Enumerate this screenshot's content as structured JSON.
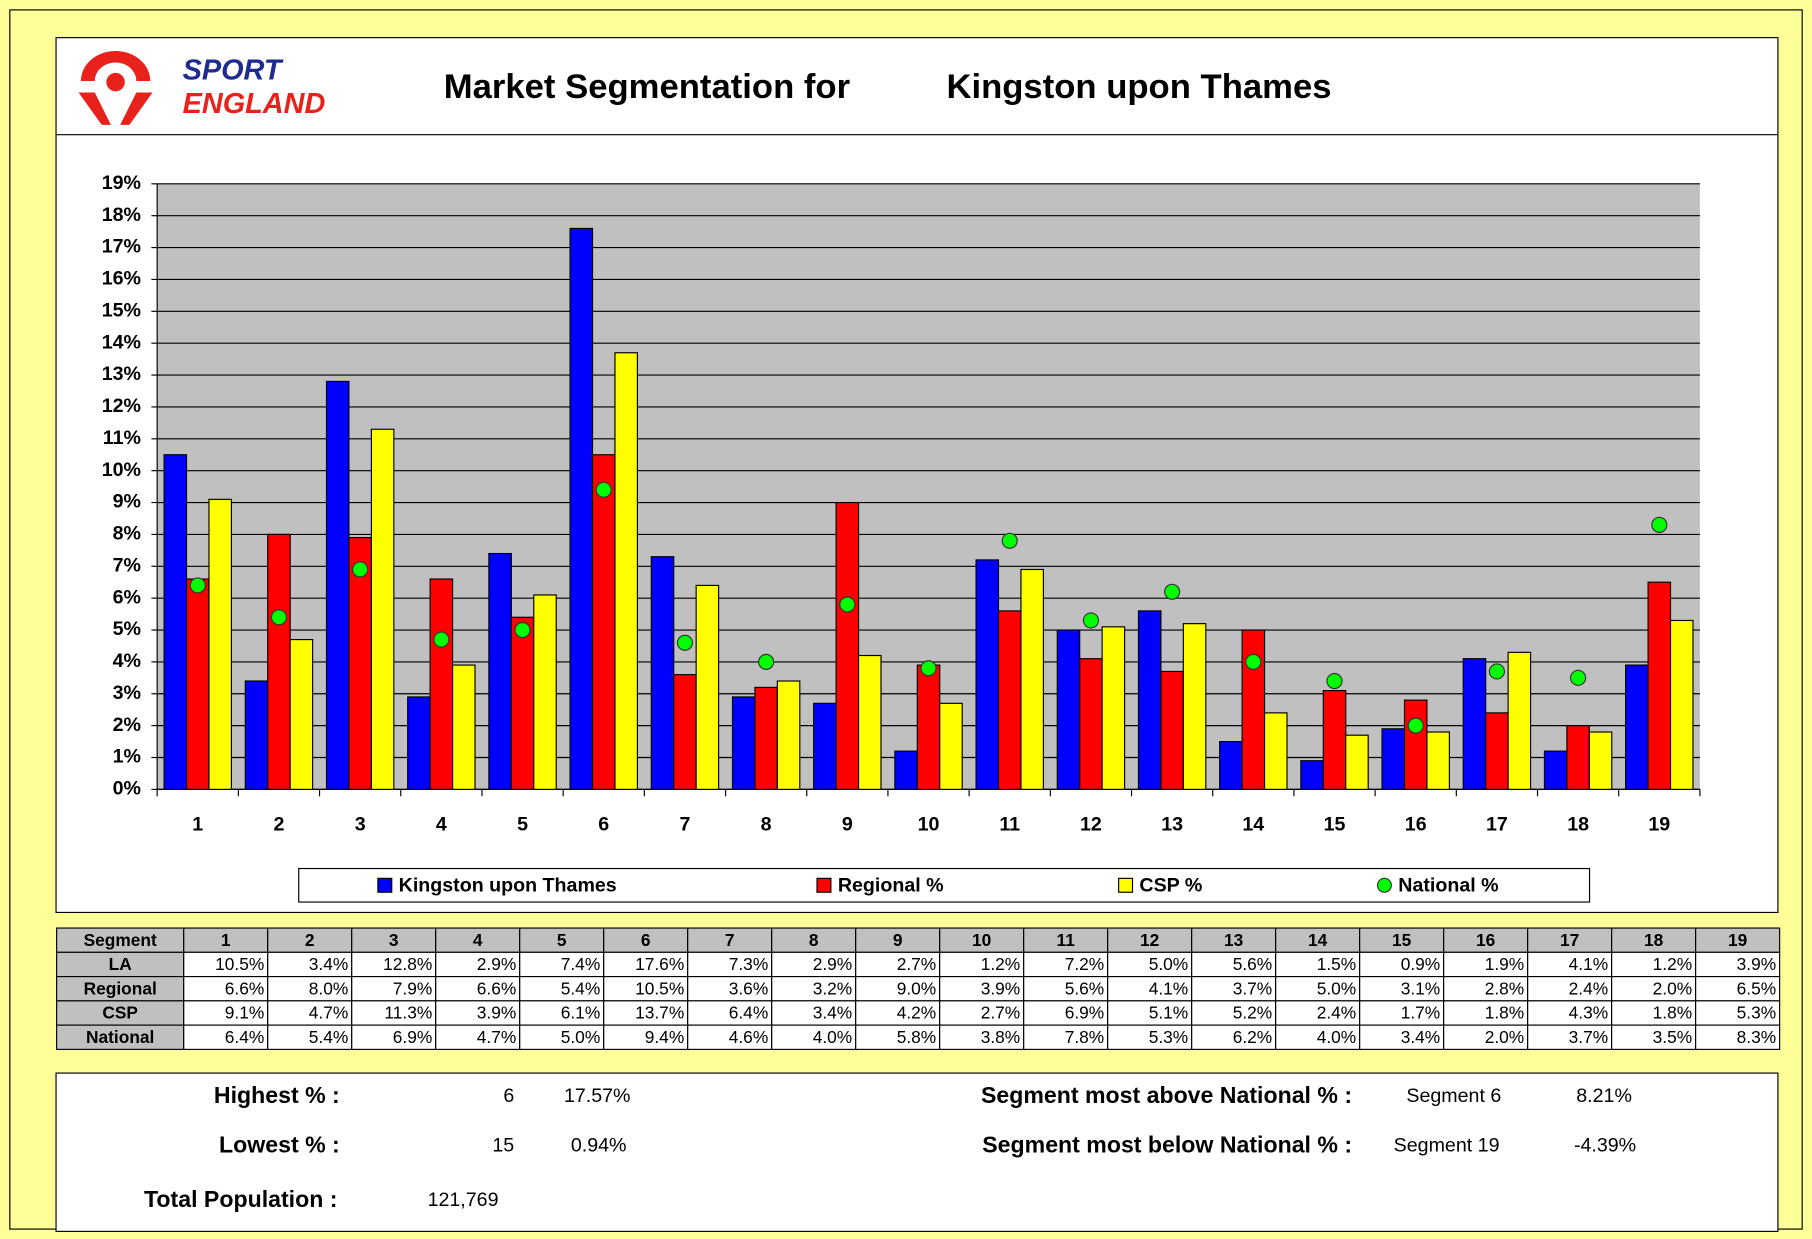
{
  "header": {
    "logo_top": "SPORT",
    "logo_bottom": "ENGLAND",
    "title": "Market Segmentation for",
    "area": "Kingston upon Thames"
  },
  "chart_data": {
    "type": "bar",
    "categories": [
      "1",
      "2",
      "3",
      "4",
      "5",
      "6",
      "7",
      "8",
      "9",
      "10",
      "11",
      "12",
      "13",
      "14",
      "15",
      "16",
      "17",
      "18",
      "19"
    ],
    "ylim": [
      0,
      19
    ],
    "yticks": [
      {
        "value": 0,
        "label": "0%"
      },
      {
        "value": 1,
        "label": "1%"
      },
      {
        "value": 2,
        "label": "2%"
      },
      {
        "value": 3,
        "label": "3%"
      },
      {
        "value": 4,
        "label": "4%"
      },
      {
        "value": 5,
        "label": "5%"
      },
      {
        "value": 6,
        "label": "6%"
      },
      {
        "value": 7,
        "label": "7%"
      },
      {
        "value": 8,
        "label": "8%"
      },
      {
        "value": 9,
        "label": "9%"
      },
      {
        "value": 10,
        "label": "10%"
      },
      {
        "value": 11,
        "label": "11%"
      },
      {
        "value": 12,
        "label": "12%"
      },
      {
        "value": 13,
        "label": "13%"
      },
      {
        "value": 14,
        "label": "14%"
      },
      {
        "value": 15,
        "label": "15%"
      },
      {
        "value": 16,
        "label": "16%"
      },
      {
        "value": 17,
        "label": "17%"
      },
      {
        "value": 18,
        "label": "18%"
      },
      {
        "value": 19,
        "label": "19%"
      }
    ],
    "grid": true,
    "legend_position": "bottom",
    "series": [
      {
        "name": "Kingston upon Thames",
        "color": "#0000FF",
        "values": [
          10.5,
          3.4,
          12.8,
          2.9,
          7.4,
          17.6,
          7.3,
          2.9,
          2.7,
          1.2,
          7.2,
          5.0,
          5.6,
          1.5,
          0.9,
          1.9,
          4.1,
          1.2,
          3.9
        ],
        "value_labels": [
          "10.5%",
          "3.4%",
          "12.8%",
          "2.9%",
          "7.4%",
          "17.6%",
          "7.3%",
          "2.9%",
          "2.7%",
          "1.2%",
          "7.2%",
          "5.0%",
          "5.6%",
          "1.5%",
          "0.9%",
          "1.9%",
          "4.1%",
          "1.2%",
          "3.9%"
        ]
      },
      {
        "name": "Regional %",
        "color": "#FF0000",
        "values": [
          6.6,
          8.0,
          7.9,
          6.6,
          5.4,
          10.5,
          3.6,
          3.2,
          9.0,
          3.9,
          5.6,
          4.1,
          3.7,
          5.0,
          3.1,
          2.8,
          2.4,
          2.0,
          6.5
        ],
        "value_labels": [
          "6.6%",
          "8.0%",
          "7.9%",
          "6.6%",
          "5.4%",
          "10.5%",
          "3.6%",
          "3.2%",
          "9.0%",
          "3.9%",
          "5.6%",
          "4.1%",
          "3.7%",
          "5.0%",
          "3.1%",
          "2.8%",
          "2.4%",
          "2.0%",
          "6.5%"
        ]
      },
      {
        "name": "CSP %",
        "color": "#FFFF00",
        "values": [
          9.1,
          4.7,
          11.3,
          3.9,
          6.1,
          13.7,
          6.4,
          3.4,
          4.2,
          2.7,
          6.9,
          5.1,
          5.2,
          2.4,
          1.7,
          1.8,
          4.3,
          1.8,
          5.3
        ],
        "value_labels": [
          "9.1%",
          "4.7%",
          "11.3%",
          "3.9%",
          "6.1%",
          "13.7%",
          "6.4%",
          "3.4%",
          "4.2%",
          "2.7%",
          "6.9%",
          "5.1%",
          "5.2%",
          "2.4%",
          "1.7%",
          "1.8%",
          "4.3%",
          "1.8%",
          "5.3%"
        ]
      },
      {
        "name": "National %",
        "type": "scatter",
        "color": "#00FF00",
        "values": [
          6.4,
          5.4,
          6.9,
          4.7,
          5.0,
          9.4,
          4.6,
          4.0,
          5.8,
          3.8,
          7.8,
          5.3,
          6.2,
          4.0,
          3.4,
          2.0,
          3.7,
          3.5,
          8.3
        ],
        "value_labels": [
          "6.4%",
          "5.4%",
          "6.9%",
          "4.7%",
          "5.0%",
          "9.4%",
          "4.6%",
          "4.0%",
          "5.8%",
          "3.8%",
          "7.8%",
          "5.3%",
          "6.2%",
          "4.0%",
          "3.4%",
          "2.0%",
          "3.7%",
          "3.5%",
          "8.3%"
        ]
      }
    ]
  },
  "table": {
    "corner": "Segment",
    "row_labels": [
      "LA",
      "Regional",
      "CSP",
      "National"
    ]
  },
  "summary": {
    "highest": {
      "label": "Highest % :",
      "segment": "6",
      "value": "17.57%"
    },
    "lowest": {
      "label": "Lowest % :",
      "segment": "15",
      "value": "0.94%"
    },
    "population": {
      "label": "Total Population :",
      "value": "121,769"
    },
    "above": {
      "label": "Segment most above National % :",
      "segment": "Segment 6",
      "value": "8.21%"
    },
    "below": {
      "label": "Segment most below National % :",
      "segment": "Segment 19",
      "value": "-4.39%"
    }
  }
}
